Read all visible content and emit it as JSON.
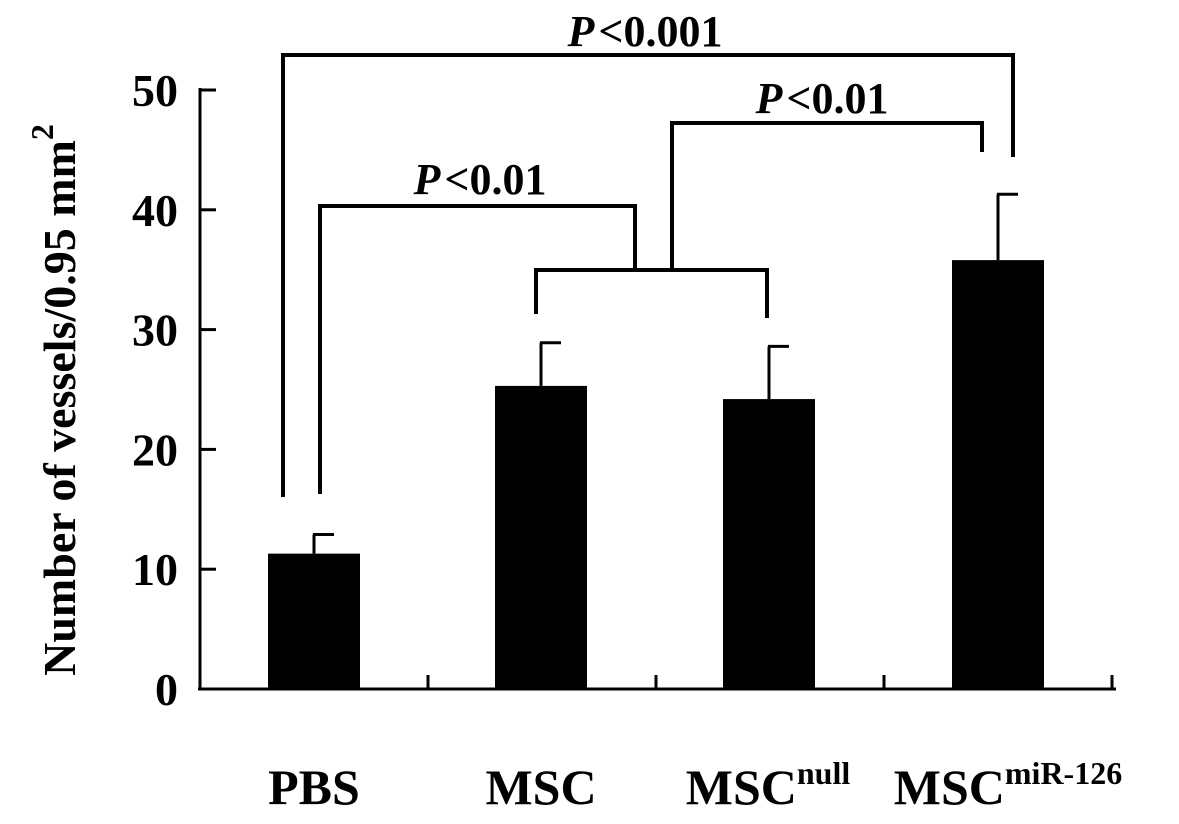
{
  "chart_data": {
    "type": "bar",
    "ylabel": "Number of vessels/0.95 mm",
    "ylabel_superscript": "2",
    "ylim": [
      0,
      50
    ],
    "yticks": [
      "0",
      "10",
      "20",
      "30",
      "40",
      "50"
    ],
    "grid": false,
    "categories": [
      {
        "base": "PBS",
        "sup": ""
      },
      {
        "base": "MSC",
        "sup": ""
      },
      {
        "base": "MSC",
        "sup": "null"
      },
      {
        "base": "MSC",
        "sup": "miR-126"
      }
    ],
    "values": [
      11.3,
      25.3,
      24.2,
      35.8
    ],
    "errors": [
      1.6,
      3.6,
      4.4,
      5.5
    ],
    "bar_color": "#000000",
    "significance": [
      {
        "p": "P",
        "rel": "<0.001",
        "from": "PBS",
        "to": "MSC miR-126"
      },
      {
        "p": "P",
        "rel": "<0.01",
        "from": "MSC + MSC null",
        "to": "MSC miR-126"
      },
      {
        "p": "P",
        "rel": "<0.01",
        "from": "PBS",
        "to": "MSC + MSC null"
      }
    ]
  }
}
